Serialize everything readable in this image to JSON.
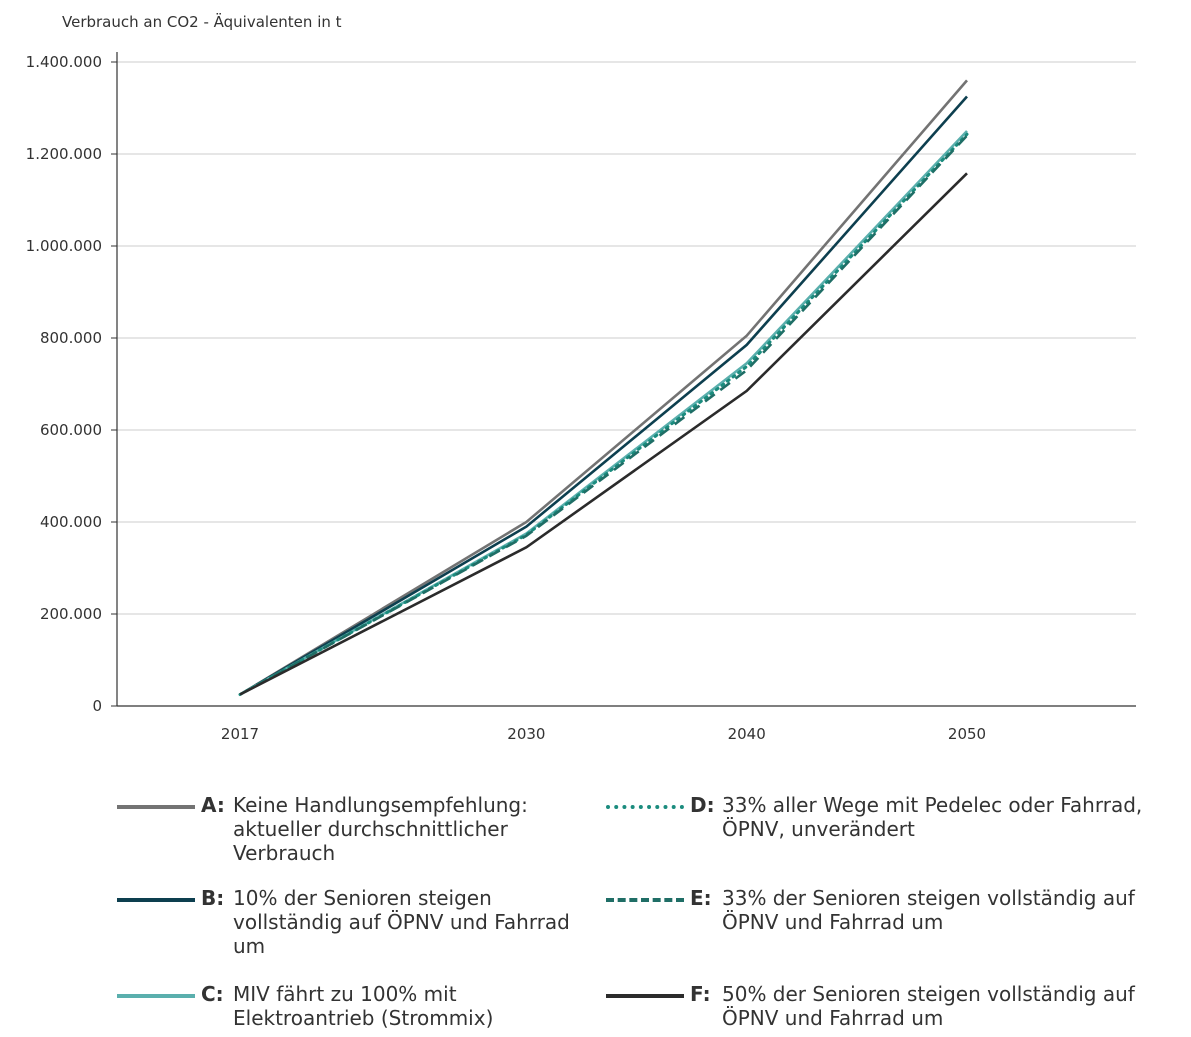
{
  "chart_data": {
    "type": "line",
    "ylabel": "Verbrauch an CO2 - Äquivalenten in t",
    "categories": [
      "2017",
      "2030",
      "2040",
      "2050"
    ],
    "x": [
      2017,
      2030,
      2040,
      2050
    ],
    "ylim": [
      0,
      1400000
    ],
    "yticks": [
      "0",
      "200.000",
      "400.000",
      "600.000",
      "800.000",
      "1.000.000",
      "1.200.000",
      "1.400.000"
    ],
    "ytick_values": [
      0,
      200000,
      400000,
      600000,
      800000,
      1000000,
      1200000,
      1400000
    ],
    "grid": true,
    "legend_position": "bottom",
    "series": [
      {
        "letter": "A",
        "name": "Keine Handlungsempfehlung: aktueller durchschnittlicher Verbrauch",
        "values": [
          25000,
          400000,
          805000,
          1360000
        ],
        "color": "#737373",
        "dash": "solid"
      },
      {
        "letter": "B",
        "name": "10% der Senioren steigen vollständig auf ÖPNV und Fahrrad um",
        "values": [
          25000,
          390000,
          785000,
          1325000
        ],
        "color": "#0d3f4f",
        "dash": "solid"
      },
      {
        "letter": "C",
        "name": "MIV fährt zu 100% mit Elektroantrieb (Strommix)",
        "values": [
          25000,
          375000,
          745000,
          1250000
        ],
        "color": "#5aafad",
        "dash": "solid"
      },
      {
        "letter": "D",
        "name": "33% aller Wege mit Pedelec oder Fahrrad, ÖPNV, unverändert",
        "values": [
          25000,
          372000,
          738000,
          1243000
        ],
        "color": "#1b8c7e",
        "dash": "dotted"
      },
      {
        "letter": "E",
        "name": "33% der Senioren steigen vollständig auf ÖPNV und Fahrrad um",
        "values": [
          25000,
          370000,
          730000,
          1240000
        ],
        "color": "#1f6e66",
        "dash": "dashed"
      },
      {
        "letter": "F",
        "name": "50% der Senioren steigen vollständig auf ÖPNV und Fahrrad um",
        "values": [
          25000,
          345000,
          685000,
          1158000
        ],
        "color": "#2b2b2b",
        "dash": "solid"
      }
    ]
  },
  "legend": [
    {
      "letter": "A:",
      "text": "Keine Handlungsempfehlung: aktueller durchschnittlicher Verbrauch"
    },
    {
      "letter": "B:",
      "text": "10% der Senioren steigen vollständig auf ÖPNV und Fahrrad um"
    },
    {
      "letter": "C:",
      "text": "MIV fährt zu 100% mit Elektroantrieb (Strommix)"
    },
    {
      "letter": "D:",
      "text": "33% aller Wege mit Pedelec oder Fahrrad, ÖPNV, unverändert"
    },
    {
      "letter": "E:",
      "text": "33% der Senioren steigen vollständig auf ÖPNV und Fahrrad um"
    },
    {
      "letter": "F:",
      "text": "50% der Senioren steigen vollständig auf ÖPNV und Fahrrad um"
    }
  ]
}
